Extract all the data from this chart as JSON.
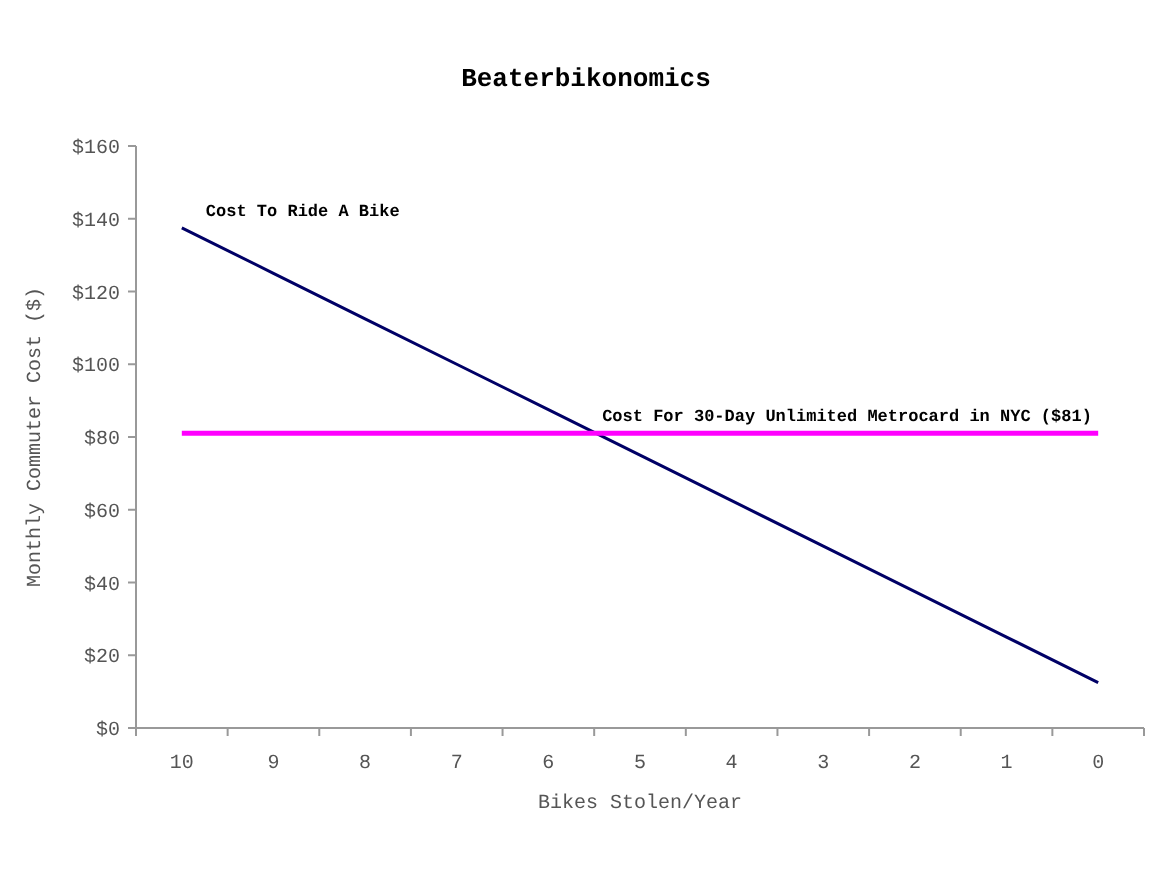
{
  "chart_data": {
    "type": "line",
    "title": "Beaterbikonomics",
    "xlabel": "Bikes Stolen/Year",
    "ylabel": "Monthly Commuter Cost ($)",
    "categories": [
      "10",
      "9",
      "8",
      "7",
      "6",
      "5",
      "4",
      "3",
      "2",
      "1",
      "0"
    ],
    "series": [
      {
        "name": "Cost To Ride A Bike",
        "color": "#000066",
        "values": [
          137.5,
          125,
          112.5,
          100,
          87.5,
          75,
          62.5,
          50,
          37.5,
          25,
          12.5
        ]
      },
      {
        "name": "Cost For 30-Day Unlimited Metrocard in NYC ($81)",
        "color": "#ff00ff",
        "values": [
          81,
          81,
          81,
          81,
          81,
          81,
          81,
          81,
          81,
          81,
          81
        ]
      }
    ],
    "ylim": [
      0,
      160
    ],
    "yticks": [
      {
        "value": 0,
        "label": "$0"
      },
      {
        "value": 20,
        "label": "$20"
      },
      {
        "value": 40,
        "label": "$40"
      },
      {
        "value": 60,
        "label": "$60"
      },
      {
        "value": 80,
        "label": "$80"
      },
      {
        "value": 100,
        "label": "$100"
      },
      {
        "value": 120,
        "label": "$120"
      },
      {
        "value": 140,
        "label": "$140"
      },
      {
        "value": 160,
        "label": "$160"
      }
    ],
    "grid": false,
    "marker": "none"
  }
}
